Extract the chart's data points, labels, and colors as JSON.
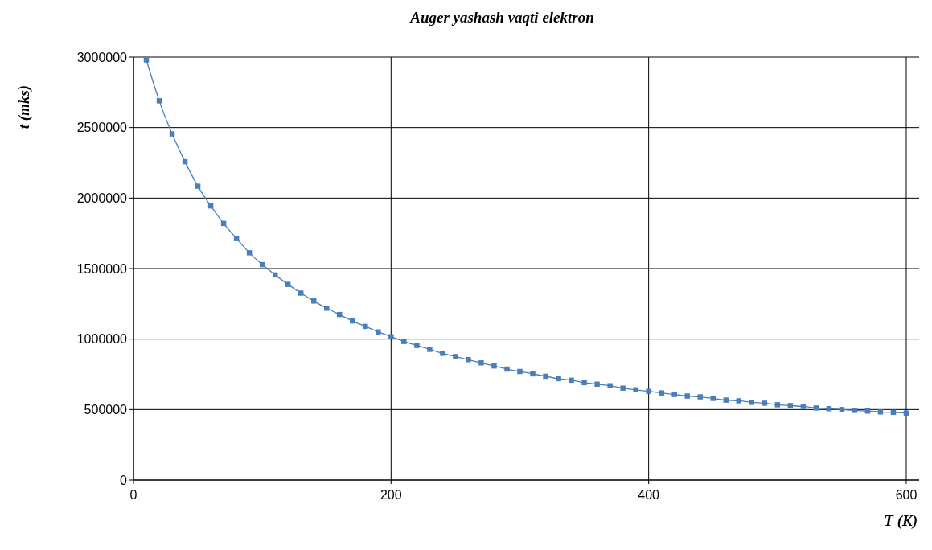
{
  "chart_data": {
    "type": "line",
    "title": "Auger yashash vaqti elektron",
    "xlabel": "T (K)",
    "ylabel": "t (mks)",
    "x": [
      10,
      20,
      30,
      40,
      50,
      60,
      70,
      80,
      90,
      100,
      110,
      120,
      130,
      140,
      150,
      160,
      170,
      180,
      190,
      200,
      210,
      220,
      230,
      240,
      250,
      260,
      270,
      280,
      290,
      300,
      310,
      320,
      330,
      340,
      350,
      360,
      370,
      380,
      390,
      400,
      410,
      420,
      430,
      440,
      450,
      460,
      470,
      480,
      490,
      500,
      510,
      520,
      530,
      540,
      550,
      560,
      570,
      580,
      590,
      600
    ],
    "series": [
      {
        "color": "#4a7ebb",
        "values": [
          2980000,
          2690000,
          2455000,
          2258000,
          2084000,
          1944000,
          1820000,
          1713000,
          1612000,
          1528000,
          1455000,
          1388000,
          1326000,
          1270000,
          1219000,
          1174000,
          1129000,
          1090000,
          1051000,
          1017000,
          983000,
          955000,
          927000,
          899000,
          876000,
          854000,
          831000,
          809000,
          787000,
          770000,
          753000,
          736000,
          719000,
          708000,
          691000,
          680000,
          669000,
          652000,
          640000,
          629000,
          618000,
          607000,
          596000,
          590000,
          579000,
          567000,
          562000,
          551000,
          545000,
          534000,
          528000,
          522000,
          511000,
          506000,
          500000,
          494000,
          489000,
          483000,
          480000,
          475000
        ]
      }
    ],
    "xlim": [
      0,
      610
    ],
    "xticks": [
      0,
      200,
      400,
      600
    ],
    "ylim": [
      0,
      3000000
    ],
    "yticks": [
      0,
      500000,
      1000000,
      1500000,
      2000000,
      2500000,
      3000000
    ],
    "grid": true,
    "marker": "square",
    "line_style": "solid"
  }
}
